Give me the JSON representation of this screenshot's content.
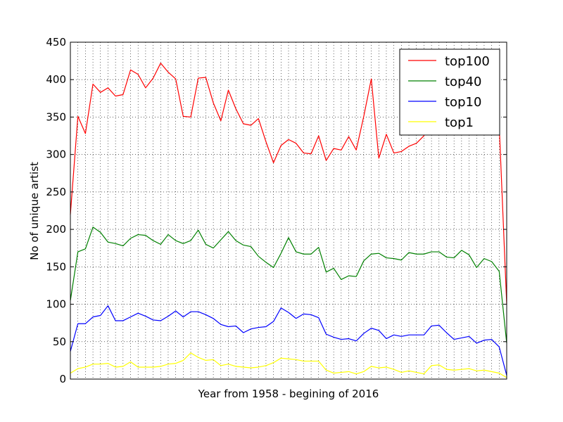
{
  "chart_data": {
    "type": "line",
    "title": "",
    "xlabel": "Year from 1958 - begining of 2016",
    "ylabel": "No of unique artist",
    "ylim": [
      0,
      450
    ],
    "yticks": [
      0,
      50,
      100,
      150,
      200,
      250,
      300,
      350,
      400,
      450
    ],
    "xlim": [
      1958,
      2016
    ],
    "x_tick_labels_shown": false,
    "grid": true,
    "grid_style": "dotted",
    "legend_position": "upper-right",
    "x": [
      1958,
      1959,
      1960,
      1961,
      1962,
      1963,
      1964,
      1965,
      1966,
      1967,
      1968,
      1969,
      1970,
      1971,
      1972,
      1973,
      1974,
      1975,
      1976,
      1977,
      1978,
      1979,
      1980,
      1981,
      1982,
      1983,
      1984,
      1985,
      1986,
      1987,
      1988,
      1989,
      1990,
      1991,
      1992,
      1993,
      1994,
      1995,
      1996,
      1997,
      1998,
      1999,
      2000,
      2001,
      2002,
      2003,
      2004,
      2005,
      2006,
      2007,
      2008,
      2009,
      2010,
      2011,
      2012,
      2013,
      2014,
      2015,
      2016
    ],
    "series": [
      {
        "name": "top100",
        "color": "#ff0000",
        "values": [
          220,
          351,
          328,
          394,
          383,
          389,
          378,
          380,
          413,
          407,
          389,
          402,
          422,
          410,
          401,
          351,
          350,
          402,
          403,
          369,
          345,
          386,
          361,
          341,
          339,
          348,
          317,
          289,
          312,
          320,
          315,
          302,
          301,
          325,
          292,
          308,
          306,
          324,
          306,
          351,
          401,
          295,
          327,
          302,
          304,
          311,
          315,
          325,
          350,
          365,
          368,
          372,
          368,
          366,
          370,
          360,
          355,
          340,
          100
        ]
      },
      {
        "name": "top40",
        "color": "#008000",
        "values": [
          105,
          170,
          174,
          203,
          196,
          183,
          181,
          178,
          188,
          193,
          192,
          185,
          180,
          193,
          185,
          181,
          185,
          199,
          180,
          175,
          186,
          197,
          185,
          179,
          177,
          164,
          156,
          149,
          168,
          189,
          170,
          167,
          167,
          176,
          143,
          148,
          133,
          138,
          137,
          158,
          167,
          168,
          162,
          161,
          159,
          169,
          167,
          167,
          170,
          170,
          163,
          162,
          172,
          166,
          149,
          161,
          157,
          144,
          48
        ]
      },
      {
        "name": "top10",
        "color": "#0000ff",
        "values": [
          37,
          74,
          74,
          83,
          85,
          98,
          78,
          78,
          83,
          88,
          84,
          79,
          78,
          84,
          91,
          83,
          90,
          90,
          86,
          81,
          73,
          70,
          71,
          62,
          67,
          69,
          70,
          77,
          95,
          89,
          81,
          87,
          86,
          82,
          60,
          56,
          53,
          54,
          51,
          61,
          68,
          65,
          54,
          59,
          57,
          59,
          59,
          59,
          71,
          72,
          62,
          53,
          55,
          57,
          48,
          52,
          53,
          43,
          5
        ]
      },
      {
        "name": "top1",
        "color": "#ffff00",
        "values": [
          8,
          14,
          16,
          20,
          20,
          21,
          16,
          17,
          23,
          16,
          16,
          16,
          17,
          20,
          21,
          25,
          35,
          29,
          25,
          26,
          18,
          20,
          17,
          16,
          15,
          16,
          18,
          22,
          28,
          27,
          26,
          24,
          24,
          24,
          12,
          8,
          9,
          10,
          7,
          10,
          17,
          15,
          16,
          13,
          9,
          11,
          9,
          7,
          18,
          19,
          13,
          12,
          13,
          14,
          11,
          12,
          10,
          8,
          2
        ]
      }
    ]
  }
}
